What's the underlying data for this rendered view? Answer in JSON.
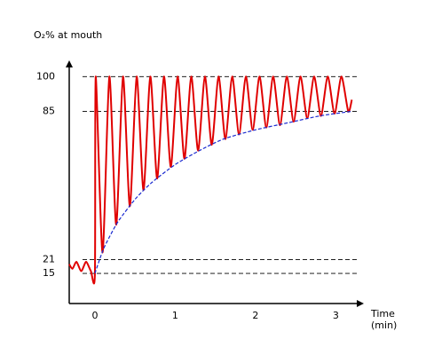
{
  "chart_data": {
    "type": "line",
    "ylabel": "O₂% at mouth",
    "xlabel": [
      "Time",
      "(min)"
    ],
    "xlim": [
      -0.32,
      3.35
    ],
    "ylim": [
      2,
      107
    ],
    "xticks": [
      0,
      1,
      2,
      3
    ],
    "yticks": [
      15,
      21,
      85,
      100
    ],
    "grid": true,
    "series": [
      {
        "color": "#e00000",
        "linestyle": "solid",
        "x": [
          -0.32,
          -0.28,
          -0.23,
          -0.17,
          -0.11,
          -0.05,
          0,
          0.01,
          0.095,
          0.18,
          0.265,
          0.35,
          0.435,
          0.52,
          0.605,
          0.69,
          0.775,
          0.86,
          0.945,
          1.03,
          1.115,
          1.2,
          1.285,
          1.37,
          1.455,
          1.54,
          1.625,
          1.71,
          1.795,
          1.88,
          1.965,
          2.05,
          2.135,
          2.22,
          2.305,
          2.39,
          2.475,
          2.56,
          2.645,
          2.73,
          2.815,
          2.9,
          2.985,
          3.07,
          3.155,
          3.2
        ],
        "values": [
          19,
          17,
          20,
          16,
          20,
          16,
          15,
          100,
          24,
          100,
          36,
          100,
          44,
          100,
          51,
          100,
          56,
          100,
          61,
          100,
          64.5,
          100,
          68,
          100,
          70.5,
          100,
          73,
          100,
          75,
          100,
          77,
          100,
          78,
          100,
          79,
          100,
          80.5,
          100,
          82,
          100,
          83,
          100,
          84,
          100,
          85,
          90
        ]
      },
      {
        "color": "#1a2ad0",
        "linestyle": "dashed",
        "x": [
          0,
          0.1,
          0.2,
          0.3,
          0.5,
          0.7,
          1.0,
          1.3,
          1.6,
          2.0,
          2.4,
          2.8,
          3.2
        ],
        "values": [
          15,
          25,
          32,
          38,
          47,
          54,
          62,
          68,
          73,
          77,
          80,
          83,
          85
        ]
      }
    ]
  }
}
